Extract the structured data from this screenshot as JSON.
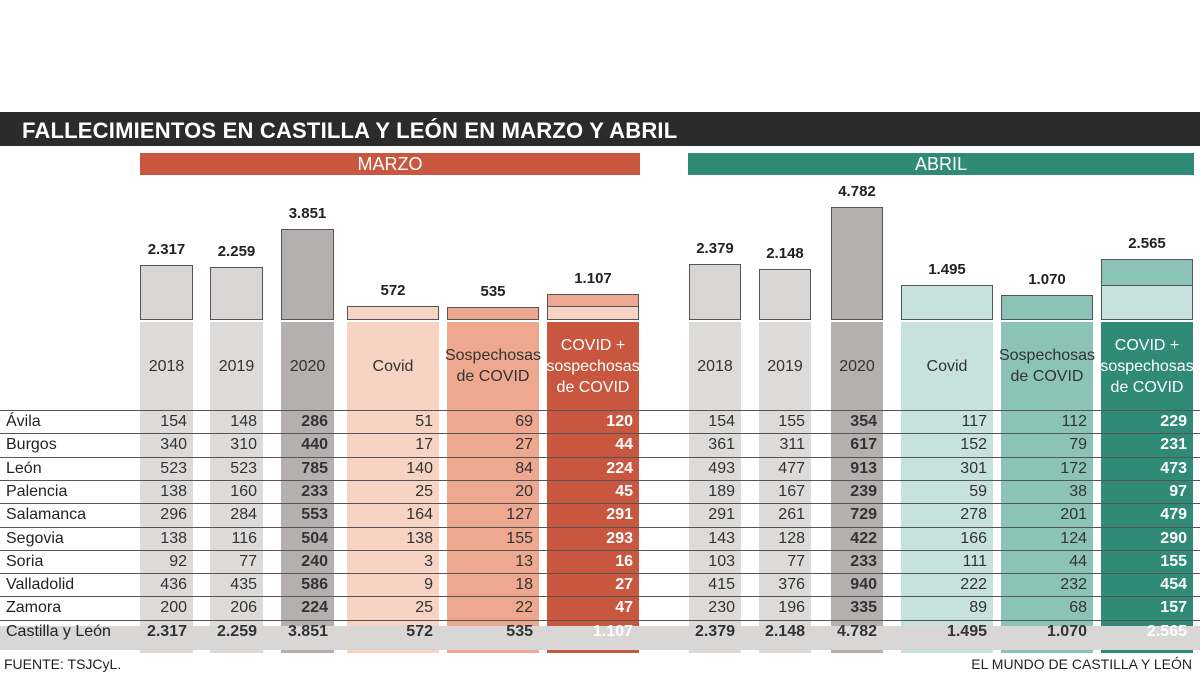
{
  "title": "FALLECIMIENTOS EN CASTILLA Y LEÓN EN MARZO Y ABRIL",
  "months": [
    "MARZO",
    "ABRIL"
  ],
  "colors": {
    "marzo": "#c95740",
    "abril": "#2f8a78",
    "title_bg": "#2b2b2b"
  },
  "columns": [
    {
      "month": "MARZO",
      "label": "2018",
      "bg": "#dddbda",
      "bar_fill": "#d9d7d6",
      "text": "#333"
    },
    {
      "month": "MARZO",
      "label": "2019",
      "bg": "#dddbda",
      "bar_fill": "#d9d7d6",
      "text": "#333"
    },
    {
      "month": "MARZO",
      "label": "2020",
      "bg": "#b3b0af",
      "bar_fill": "#b3b0af",
      "text": "#333"
    },
    {
      "month": "MARZO",
      "label": "Covid",
      "bg": "#f7d3c3",
      "bar_fill": "#f7d3c3",
      "text": "#333"
    },
    {
      "month": "MARZO",
      "label": "Sospechosas de COVID",
      "bg": "#eda88f",
      "bar_fill": "#eda88f",
      "text": "#333"
    },
    {
      "month": "MARZO",
      "label": "COVID + sospechosas de COVID",
      "bg": "#c95740",
      "bar_fill": "#eda88f",
      "text": "#fff"
    },
    {
      "month": "ABRIL",
      "label": "2018",
      "bg": "#dddbda",
      "bar_fill": "#d9d7d6",
      "text": "#333"
    },
    {
      "month": "ABRIL",
      "label": "2019",
      "bg": "#dddbda",
      "bar_fill": "#d9d7d6",
      "text": "#333"
    },
    {
      "month": "ABRIL",
      "label": "2020",
      "bg": "#b3b0af",
      "bar_fill": "#b3b0af",
      "text": "#333"
    },
    {
      "month": "ABRIL",
      "label": "Covid",
      "bg": "#c7e1dc",
      "bar_fill": "#c7e1dc",
      "text": "#333"
    },
    {
      "month": "ABRIL",
      "label": "Sospechosas de COVID",
      "bg": "#8cc3b8",
      "bar_fill": "#8cc3b8",
      "text": "#333"
    },
    {
      "month": "ABRIL",
      "label": "COVID + sospechosas de COVID",
      "bg": "#2f8a78",
      "bar_fill": "#8cc3b8",
      "text": "#fff"
    }
  ],
  "chart_data": {
    "type": "table",
    "title": "FALLECIMIENTOS EN CASTILLA Y LEÓN EN MARZO Y ABRIL",
    "groups": [
      "MARZO",
      "ABRIL"
    ],
    "headers": [
      "2018",
      "2019",
      "2020",
      "Covid",
      "Sospechosas de COVID",
      "COVID + sospechosas de COVID",
      "2018",
      "2019",
      "2020",
      "Covid",
      "Sospechosas de COVID",
      "COVID + sospechosas de COVID"
    ],
    "bar_totals": [
      2317,
      2259,
      3851,
      572,
      535,
      1107,
      2379,
      2148,
      4782,
      1495,
      1070,
      2565
    ],
    "bar_total_labels": [
      "2.317",
      "2.259",
      "3.851",
      "572",
      "535",
      "1.107",
      "2.379",
      "2.148",
      "4.782",
      "1.495",
      "1.070",
      "2.565"
    ],
    "rows": [
      {
        "region": "Ávila",
        "values": [
          "154",
          "148",
          "286",
          "51",
          "69",
          "120",
          "154",
          "155",
          "354",
          "117",
          "112",
          "229"
        ]
      },
      {
        "region": "Burgos",
        "values": [
          "340",
          "310",
          "440",
          "17",
          "27",
          "44",
          "361",
          "311",
          "617",
          "152",
          "79",
          "231"
        ]
      },
      {
        "region": "León",
        "values": [
          "523",
          "523",
          "785",
          "140",
          "84",
          "224",
          "493",
          "477",
          "913",
          "301",
          "172",
          "473"
        ]
      },
      {
        "region": "Palencia",
        "values": [
          "138",
          "160",
          "233",
          "25",
          "20",
          "45",
          "189",
          "167",
          "239",
          "59",
          "38",
          "97"
        ]
      },
      {
        "region": "Salamanca",
        "values": [
          "296",
          "284",
          "553",
          "164",
          "127",
          "291",
          "291",
          "261",
          "729",
          "278",
          "201",
          "479"
        ]
      },
      {
        "region": "Segovia",
        "values": [
          "138",
          "116",
          "504",
          "138",
          "155",
          "293",
          "143",
          "128",
          "422",
          "166",
          "124",
          "290"
        ]
      },
      {
        "region": "Soria",
        "values": [
          "92",
          "77",
          "240",
          "3",
          "13",
          "16",
          "103",
          "77",
          "233",
          "111",
          "44",
          "155"
        ]
      },
      {
        "region": "Valladolid",
        "values": [
          "436",
          "435",
          "586",
          "9",
          "18",
          "27",
          "415",
          "376",
          "940",
          "222",
          "232",
          "454"
        ]
      },
      {
        "region": "Zamora",
        "values": [
          "200",
          "206",
          "224",
          "25",
          "22",
          "47",
          "230",
          "196",
          "335",
          "89",
          "68",
          "157"
        ]
      }
    ],
    "total_row": {
      "region": "Castilla y León",
      "values": [
        "2.317",
        "2.259",
        "3.851",
        "572",
        "535",
        "1.107",
        "2.379",
        "2.148",
        "4.782",
        "1.495",
        "1.070",
        "2.565"
      ]
    }
  },
  "footer": {
    "source": "FUENTE:  TSJCyL.",
    "credit": "EL MUNDO DE CASTILLA Y LEÓN"
  }
}
